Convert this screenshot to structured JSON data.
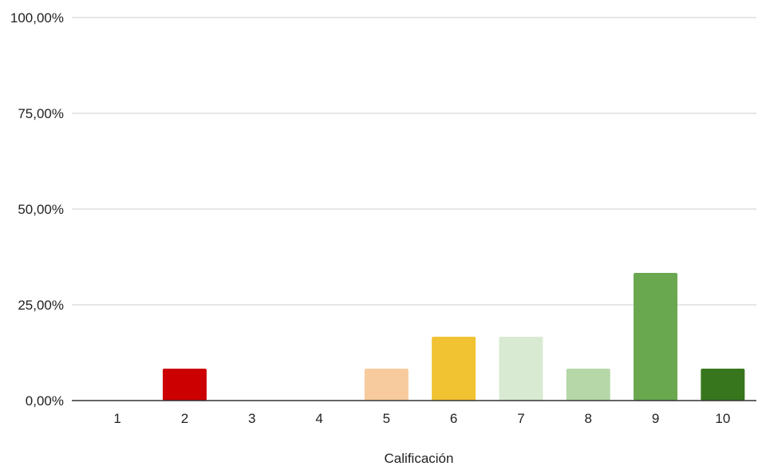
{
  "chart_data": {
    "type": "bar",
    "xlabel": "Calificación",
    "ylabel": "",
    "categories": [
      "1",
      "2",
      "3",
      "4",
      "5",
      "6",
      "7",
      "8",
      "9",
      "10"
    ],
    "values": [
      0,
      8.33,
      0,
      0,
      8.33,
      16.67,
      16.67,
      8.33,
      33.33,
      8.33
    ],
    "colors": [
      "#cccccc",
      "#cc0000",
      "#cccccc",
      "#cccccc",
      "#f7cb9d",
      "#f1c232",
      "#d9ead3",
      "#b6d7a8",
      "#6aa84f",
      "#38761d"
    ],
    "ylim": [
      0,
      100
    ],
    "yticks": [
      "0,00%",
      "25,00%",
      "50,00%",
      "75,00%",
      "100,00%"
    ],
    "grid": true,
    "legend": "none"
  }
}
